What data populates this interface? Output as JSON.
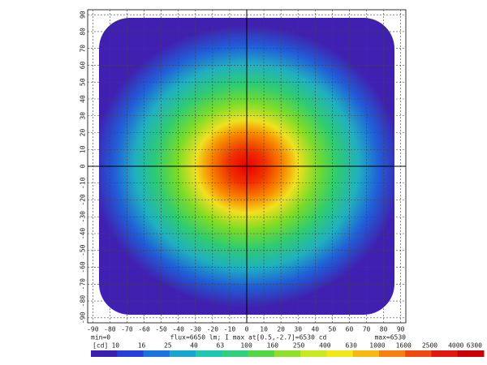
{
  "chart_data": {
    "type": "heatmap",
    "xlim": [
      -93,
      93
    ],
    "ylim": [
      -93,
      93
    ],
    "xticks": [
      -90,
      -80,
      -70,
      -60,
      -50,
      -40,
      -30,
      -20,
      -10,
      0,
      10,
      20,
      30,
      40,
      50,
      60,
      70,
      80,
      90
    ],
    "yticks": [
      -90,
      -80,
      -70,
      -60,
      -50,
      -40,
      -30,
      -20,
      -10,
      0,
      10,
      20,
      30,
      40,
      50,
      60,
      70,
      80,
      90
    ],
    "grid": true,
    "min_label": "min=0",
    "caption": "flux=6650 lm; I max at[0.5,-2.7]=6530 cd",
    "max_label": "max=6530",
    "colorbar_unit": "[cd]",
    "colorbar_labels": [
      "10",
      "16",
      "25",
      "40",
      "63",
      "100",
      "160",
      "250",
      "400",
      "630",
      "1000",
      "1600",
      "2500",
      "4000",
      "6300"
    ],
    "colorbar_colors": [
      "#3a1fb0",
      "#2440d8",
      "#1a72e0",
      "#17a6d0",
      "#1fc6b0",
      "#2fd080",
      "#52d845",
      "#8ee02a",
      "#c8e820",
      "#f0e818",
      "#f8b810",
      "#f88010",
      "#f04810",
      "#e01810",
      "#c80008"
    ]
  }
}
